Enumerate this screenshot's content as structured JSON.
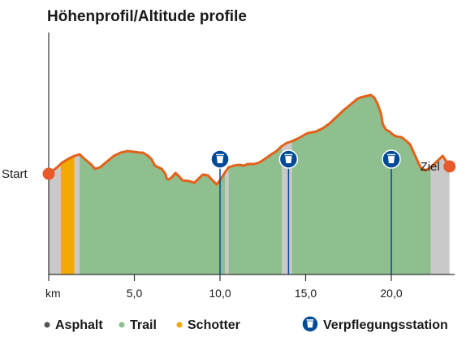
{
  "chart_data": {
    "type": "area",
    "title": "Höhenprofil/Altitude profile",
    "xlabel": "km",
    "ylabel": "",
    "xlim": [
      0,
      23.7
    ],
    "x_ticks": [
      {
        "value": 5,
        "label": "5,0"
      },
      {
        "value": 10,
        "label": "10,0"
      },
      {
        "value": 15,
        "label": "15,0"
      },
      {
        "value": 20,
        "label": "20,0"
      }
    ],
    "profile": {
      "x": [
        0.0,
        0.5,
        0.8,
        1.2,
        1.5,
        1.8,
        2.0,
        2.5,
        2.7,
        3.0,
        3.4,
        3.8,
        4.2,
        4.6,
        5.0,
        5.3,
        5.5,
        5.8,
        6.0,
        6.2,
        6.6,
        6.8,
        6.9,
        7.0,
        7.2,
        7.4,
        7.6,
        7.8,
        8.2,
        8.5,
        8.7,
        9.0,
        9.3,
        9.6,
        9.8,
        10.0,
        10.3,
        10.5,
        10.8,
        11.1,
        11.4,
        11.6,
        12.0,
        12.3,
        12.6,
        13.0,
        13.3,
        13.6,
        13.9,
        14.2,
        14.6,
        15.1,
        15.6,
        16.0,
        16.4,
        16.8,
        17.2,
        17.6,
        18.0,
        18.2,
        18.4,
        18.6,
        18.8,
        19.0,
        19.2,
        19.4,
        19.5,
        19.7,
        19.9,
        20.1,
        20.3,
        20.6,
        20.9,
        21.1,
        21.4,
        21.7,
        22.0,
        22.3,
        22.6,
        23.0,
        23.4
      ],
      "labels": [
        "Start",
        "Ziel"
      ],
      "_note_ignore": ""
    },
    "elevation_rel": [
      0.34,
      0.42,
      0.48,
      0.53,
      0.56,
      0.58,
      0.54,
      0.45,
      0.4,
      0.42,
      0.49,
      0.56,
      0.6,
      0.62,
      0.61,
      0.6,
      0.6,
      0.56,
      0.52,
      0.44,
      0.4,
      0.34,
      0.28,
      0.27,
      0.3,
      0.35,
      0.31,
      0.26,
      0.25,
      0.23,
      0.27,
      0.33,
      0.32,
      0.25,
      0.21,
      0.26,
      0.36,
      0.42,
      0.44,
      0.45,
      0.44,
      0.46,
      0.46,
      0.48,
      0.52,
      0.58,
      0.62,
      0.68,
      0.72,
      0.74,
      0.78,
      0.84,
      0.86,
      0.9,
      0.96,
      1.04,
      1.12,
      1.19,
      1.26,
      1.28,
      1.29,
      1.3,
      1.31,
      1.28,
      1.2,
      1.08,
      0.95,
      0.88,
      0.86,
      0.82,
      0.8,
      0.79,
      0.74,
      0.7,
      0.56,
      0.42,
      0.38,
      0.42,
      0.48,
      0.56,
      0.43
    ],
    "surfaces": [
      {
        "name": "Asphalt",
        "color": "#c9c9c9",
        "ranges": [
          [
            0.0,
            0.7
          ],
          [
            1.5,
            1.8
          ],
          [
            10.3,
            10.5
          ],
          [
            13.6,
            14.2
          ],
          [
            22.3,
            23.4
          ]
        ]
      },
      {
        "name": "Trail",
        "color": "#8fbf8f",
        "ranges": [
          [
            1.8,
            10.3
          ],
          [
            10.5,
            13.6
          ],
          [
            14.2,
            22.3
          ]
        ]
      },
      {
        "name": "Schotter",
        "color": "#f2a900",
        "ranges": [
          [
            0.7,
            1.5
          ]
        ]
      }
    ],
    "stations": {
      "name": "Verpflegungsstation",
      "x": [
        10.0,
        14.0,
        20.0
      ]
    },
    "start_label": "Start",
    "finish_label": "Ziel",
    "colors": {
      "line": "#e2621a",
      "axis": "#333333",
      "station": "#004a97",
      "marker": "#e8592b"
    },
    "legend": {
      "placement": "bottom",
      "items": [
        {
          "name": "Asphalt",
          "color": "#555555"
        },
        {
          "name": "Trail",
          "color": "#8fbf8f"
        },
        {
          "name": "Schotter",
          "color": "#f2a900"
        }
      ],
      "station_item": "Verpflegungsstation"
    }
  }
}
